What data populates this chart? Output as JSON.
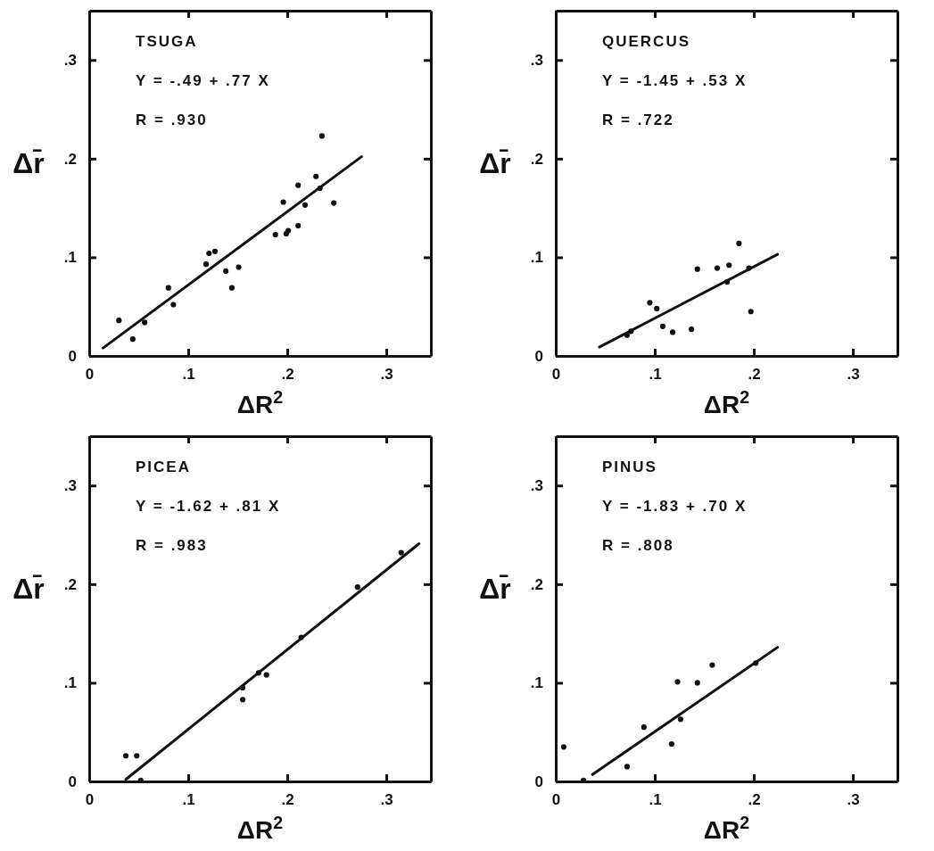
{
  "chart_data": [
    {
      "type": "scatter",
      "xlabel": "ΔR$^{2}$",
      "ylabel": "Δr̄",
      "annotations": [
        "TSUGA",
        "Y = -.49 + .77 X",
        "R = .930"
      ],
      "xlim": [
        0,
        0.345
      ],
      "ylim": [
        0,
        0.35
      ],
      "xticks": [
        {
          "value": 0,
          "label": "0"
        },
        {
          "value": 0.1,
          "label": ".1"
        },
        {
          "value": 0.2,
          "label": ".2"
        },
        {
          "value": 0.3,
          "label": ".3"
        }
      ],
      "yticks": [
        {
          "value": 0,
          "label": "0"
        },
        {
          "value": 0.1,
          "label": ".1"
        },
        {
          "value": 0.2,
          "label": ".2"
        },
        {
          "value": 0.3,
          "label": ".3"
        }
      ],
      "grid": false,
      "series": [
        {
          "marker": "circle",
          "color": "#111111",
          "x": [
            0.03,
            0.044,
            0.056,
            0.08,
            0.085,
            0.118,
            0.121,
            0.127,
            0.138,
            0.144,
            0.151,
            0.188,
            0.196,
            0.199,
            0.201,
            0.211,
            0.211,
            0.218,
            0.229,
            0.233,
            0.235,
            0.247
          ],
          "values": [
            0.036,
            0.017,
            0.034,
            0.069,
            0.052,
            0.093,
            0.104,
            0.106,
            0.086,
            0.069,
            0.09,
            0.123,
            0.156,
            0.124,
            0.127,
            0.132,
            0.173,
            0.153,
            0.182,
            0.17,
            0.223,
            0.155
          ]
        },
        {
          "type": "line",
          "color": "#111111",
          "x": [
            0.014,
            0.275
          ],
          "values": [
            0.008,
            0.202
          ]
        }
      ]
    },
    {
      "type": "scatter",
      "xlabel": "ΔR$^{2}$",
      "ylabel": "Δr̄",
      "annotations": [
        "QUERCUS",
        "Y = -1.45 + .53 X",
        "R = .722"
      ],
      "xlim": [
        0,
        0.345
      ],
      "ylim": [
        0,
        0.35
      ],
      "xticks": [
        {
          "value": 0,
          "label": "0"
        },
        {
          "value": 0.1,
          "label": ".1"
        },
        {
          "value": 0.2,
          "label": ".2"
        },
        {
          "value": 0.3,
          "label": ".3"
        }
      ],
      "yticks": [
        {
          "value": 0,
          "label": "0"
        },
        {
          "value": 0.1,
          "label": ".1"
        },
        {
          "value": 0.2,
          "label": ".2"
        },
        {
          "value": 0.3,
          "label": ".3"
        }
      ],
      "grid": false,
      "series": [
        {
          "marker": "circle",
          "color": "#111111",
          "x": [
            0.072,
            0.076,
            0.095,
            0.102,
            0.108,
            0.118,
            0.137,
            0.143,
            0.163,
            0.173,
            0.175,
            0.185,
            0.195,
            0.197
          ],
          "values": [
            0.021,
            0.025,
            0.054,
            0.048,
            0.03,
            0.024,
            0.027,
            0.088,
            0.089,
            0.075,
            0.092,
            0.114,
            0.089,
            0.045
          ]
        },
        {
          "type": "line",
          "color": "#111111",
          "x": [
            0.044,
            0.224
          ],
          "values": [
            0.009,
            0.103
          ]
        }
      ]
    },
    {
      "type": "scatter",
      "xlabel": "ΔR$^{2}$",
      "ylabel": "Δr̄",
      "annotations": [
        "PICEA",
        "Y = -1.62 + .81 X",
        "R = .983"
      ],
      "xlim": [
        0,
        0.345
      ],
      "ylim": [
        0,
        0.35
      ],
      "xticks": [
        {
          "value": 0,
          "label": "0"
        },
        {
          "value": 0.1,
          "label": ".1"
        },
        {
          "value": 0.2,
          "label": ".2"
        },
        {
          "value": 0.3,
          "label": ".3"
        }
      ],
      "yticks": [
        {
          "value": 0,
          "label": "0"
        },
        {
          "value": 0.1,
          "label": ".1"
        },
        {
          "value": 0.2,
          "label": ".2"
        },
        {
          "value": 0.3,
          "label": ".3"
        }
      ],
      "grid": false,
      "series": [
        {
          "marker": "circle",
          "color": "#111111",
          "x": [
            0.037,
            0.048,
            0.052,
            0.155,
            0.155,
            0.171,
            0.179,
            0.214,
            0.271,
            0.315
          ],
          "values": [
            0.026,
            0.026,
            0.001,
            0.083,
            0.095,
            0.11,
            0.108,
            0.146,
            0.197,
            0.232
          ]
        },
        {
          "type": "line",
          "color": "#111111",
          "x": [
            0.037,
            0.333
          ],
          "values": [
            0.002,
            0.241
          ]
        }
      ]
    },
    {
      "type": "scatter",
      "xlabel": "ΔR$^{2}$",
      "ylabel": "Δr̄",
      "annotations": [
        "PINUS",
        "Y = -1.83 + .70 X",
        "R = .808"
      ],
      "xlim": [
        0,
        0.345
      ],
      "ylim": [
        0,
        0.35
      ],
      "xticks": [
        {
          "value": 0,
          "label": "0"
        },
        {
          "value": 0.1,
          "label": ".1"
        },
        {
          "value": 0.2,
          "label": ".2"
        },
        {
          "value": 0.3,
          "label": ".3"
        }
      ],
      "yticks": [
        {
          "value": 0,
          "label": "0"
        },
        {
          "value": 0.1,
          "label": ".1"
        },
        {
          "value": 0.2,
          "label": ".2"
        },
        {
          "value": 0.3,
          "label": ".3"
        }
      ],
      "grid": false,
      "series": [
        {
          "marker": "circle",
          "color": "#111111",
          "x": [
            0.008,
            0.028,
            0.072,
            0.089,
            0.117,
            0.123,
            0.126,
            0.143,
            0.158,
            0.202
          ],
          "values": [
            0.035,
            0.001,
            0.015,
            0.055,
            0.038,
            0.101,
            0.063,
            0.1,
            0.118,
            0.12
          ]
        },
        {
          "type": "line",
          "color": "#111111",
          "x": [
            0.037,
            0.224
          ],
          "values": [
            0.007,
            0.136
          ]
        }
      ]
    }
  ]
}
